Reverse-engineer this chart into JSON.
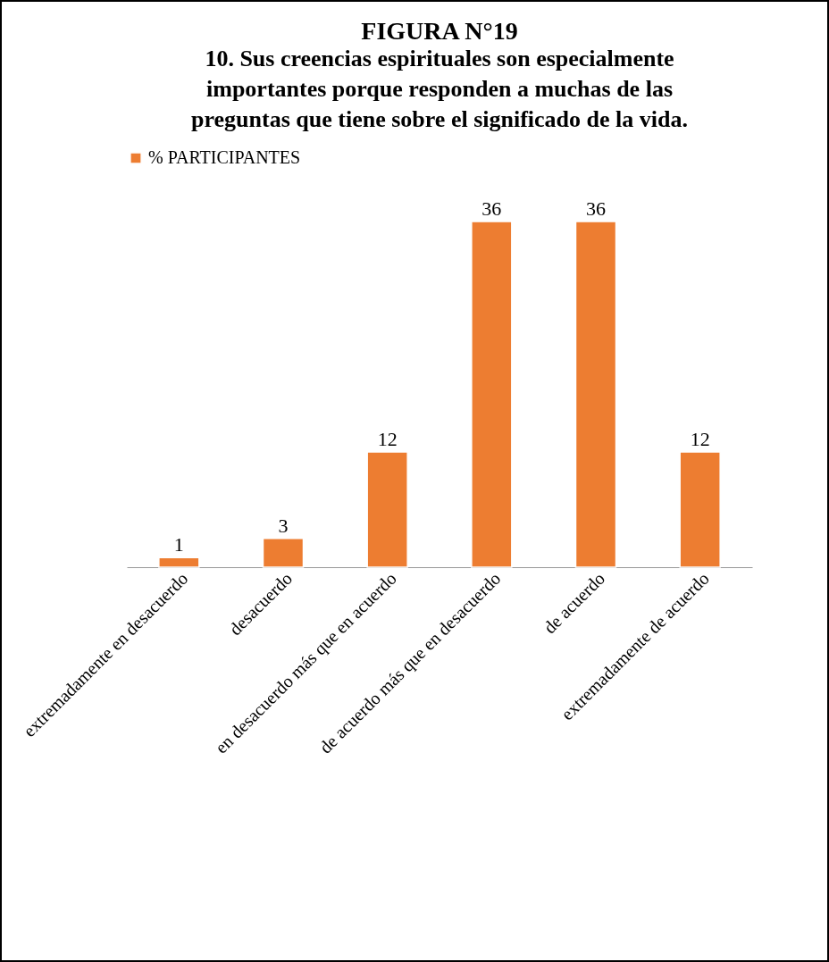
{
  "chart_data": {
    "type": "bar",
    "title": "FIGURA N°19",
    "subtitle": "10. Sus creencias espirituales son especialmente importantes porque responden a muchas de las preguntas que tiene sobre el significado de la vida.",
    "categories": [
      "extremadamente en desacuerdo",
      "desacuerdo",
      "en desacuerdo más que en acuerdo",
      "de acuerdo más que en desacuerdo",
      "de acuerdo",
      "extremadamente de acuerdo"
    ],
    "series": [
      {
        "name": "% PARTICIPANTES",
        "color": "#ed7d31",
        "values": [
          1,
          3,
          12,
          36,
          36,
          12
        ]
      }
    ],
    "data_labels": true,
    "legend": "top",
    "tick_labels": "x"
  }
}
